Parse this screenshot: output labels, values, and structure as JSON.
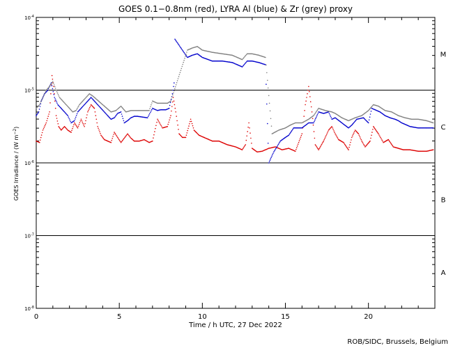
{
  "chart_data": {
    "type": "scatter",
    "title": "GOES 0.1−0.8nm (red), LYRA Al (blue) & Zr (grey) proxy",
    "xlabel": "Time / h UTC, 27 Dec 2022",
    "ylabel_main": "GOES Irradiance / (W m",
    "ylabel_sup": "−2",
    "ylabel_end": ")",
    "credit": "ROB/SIDC, Brussels, Belgium",
    "xlim": [
      0,
      24
    ],
    "ylim_log10": [
      -8,
      -4
    ],
    "y_scale": "log",
    "x_ticks": [
      {
        "v": 0,
        "label": "0"
      },
      {
        "v": 5,
        "label": "5"
      },
      {
        "v": 10,
        "label": "10"
      },
      {
        "v": 15,
        "label": "15"
      },
      {
        "v": 20,
        "label": "20"
      }
    ],
    "y_ticks": [
      {
        "e": -4,
        "label": "-4"
      },
      {
        "e": -5,
        "label": "-5"
      },
      {
        "e": -6,
        "label": "-6"
      },
      {
        "e": -7,
        "label": "-7"
      },
      {
        "e": -8,
        "label": "-8"
      }
    ],
    "class_labels": [
      {
        "label": "M",
        "log10": -4.5
      },
      {
        "label": "C",
        "log10": -5.5
      },
      {
        "label": "B",
        "log10": -6.5
      },
      {
        "label": "A",
        "log10": -7.5
      }
    ],
    "reference_lines_log10": [
      -5,
      -6,
      -7
    ],
    "series": [
      {
        "name": "GOES 0.1−0.8nm",
        "color": "#dd0000",
        "x": [
          0.0,
          0.2,
          0.4,
          0.6,
          0.8,
          0.95,
          1.05,
          1.2,
          1.35,
          1.5,
          1.7,
          1.9,
          2.1,
          2.3,
          2.5,
          2.7,
          2.9,
          3.1,
          3.3,
          3.5,
          3.7,
          3.9,
          4.1,
          4.3,
          4.5,
          4.7,
          4.9,
          5.1,
          5.3,
          5.5,
          5.7,
          5.9,
          6.2,
          6.5,
          6.8,
          7.0,
          7.3,
          7.6,
          7.9,
          8.1,
          8.25,
          8.4,
          8.6,
          8.8,
          9.0,
          9.3,
          9.5,
          9.8,
          10.2,
          10.6,
          11.0,
          11.5,
          12.0,
          12.4,
          12.6,
          12.8,
          13.0,
          13.3,
          13.6,
          14.0,
          14.4,
          14.8,
          15.2,
          15.6,
          16.0,
          16.2,
          16.4,
          16.6,
          16.8,
          17.0,
          17.3,
          17.6,
          17.8,
          18.0,
          18.2,
          18.5,
          18.8,
          19.0,
          19.2,
          19.4,
          19.6,
          19.8,
          20.1,
          20.3,
          20.6,
          20.9,
          21.2,
          21.5,
          21.8,
          22.1,
          22.5,
          23.0,
          23.5,
          23.9
        ],
        "y_log10": [
          -5.7,
          -5.72,
          -5.55,
          -5.45,
          -5.3,
          -4.8,
          -4.95,
          -5.35,
          -5.5,
          -5.55,
          -5.5,
          -5.55,
          -5.58,
          -5.45,
          -5.52,
          -5.4,
          -5.5,
          -5.3,
          -5.2,
          -5.25,
          -5.5,
          -5.62,
          -5.68,
          -5.7,
          -5.72,
          -5.58,
          -5.65,
          -5.72,
          -5.66,
          -5.6,
          -5.66,
          -5.7,
          -5.7,
          -5.68,
          -5.72,
          -5.7,
          -5.4,
          -5.52,
          -5.5,
          -5.35,
          -5.1,
          -5.3,
          -5.6,
          -5.65,
          -5.65,
          -5.4,
          -5.55,
          -5.62,
          -5.66,
          -5.7,
          -5.7,
          -5.75,
          -5.78,
          -5.82,
          -5.75,
          -5.45,
          -5.8,
          -5.85,
          -5.84,
          -5.8,
          -5.78,
          -5.82,
          -5.8,
          -5.84,
          -5.6,
          -5.2,
          -4.95,
          -5.3,
          -5.75,
          -5.82,
          -5.7,
          -5.55,
          -5.5,
          -5.6,
          -5.68,
          -5.72,
          -5.82,
          -5.65,
          -5.55,
          -5.6,
          -5.7,
          -5.78,
          -5.7,
          -5.5,
          -5.6,
          -5.72,
          -5.68,
          -5.78,
          -5.8,
          -5.82,
          -5.82,
          -5.84,
          -5.84,
          -5.82
        ]
      },
      {
        "name": "LYRA Al",
        "color": "#0000cc",
        "x": [
          0.0,
          0.15,
          0.3,
          0.5,
          0.7,
          0.9,
          1.1,
          1.3,
          1.5,
          1.7,
          1.9,
          2.1,
          2.3,
          2.5,
          2.7,
          2.9,
          3.1,
          3.3,
          3.5,
          4.5,
          4.7,
          4.9,
          5.1,
          5.3,
          5.5,
          5.7,
          5.9,
          6.1,
          6.4,
          6.7,
          7.0,
          7.3,
          7.5,
          7.8,
          8.0,
          8.2,
          8.3,
          8.35,
          9.1,
          9.4,
          9.7,
          10.0,
          10.6,
          11.2,
          11.8,
          12.4,
          12.7,
          13.0,
          13.4,
          13.8,
          14.0,
          14.3,
          14.7,
          15.0,
          15.2,
          15.5,
          15.8,
          16.0,
          16.4,
          16.7,
          17.0,
          17.3,
          17.6,
          17.8,
          18.0,
          18.4,
          18.8,
          19.0,
          19.3,
          19.7,
          20.0,
          20.2,
          20.4,
          20.7,
          21.0,
          21.3,
          21.6,
          21.8,
          22.0,
          22.5,
          23.0,
          23.5,
          23.9
        ],
        "y_log10": [
          -5.35,
          -5.3,
          -5.15,
          -5.05,
          -5.0,
          -4.9,
          -5.1,
          -5.2,
          -5.25,
          -5.3,
          -5.35,
          -5.45,
          -5.42,
          -5.3,
          -5.25,
          -5.2,
          -5.15,
          -5.1,
          -5.15,
          -5.4,
          -5.38,
          -5.32,
          -5.3,
          -5.45,
          -5.42,
          -5.38,
          -5.36,
          -5.36,
          -5.37,
          -5.38,
          -5.25,
          -5.28,
          -5.27,
          -5.27,
          -5.25,
          -5.05,
          -4.9,
          -4.3,
          -4.55,
          -4.52,
          -4.5,
          -4.55,
          -4.6,
          -4.6,
          -4.62,
          -4.68,
          -4.6,
          -4.6,
          -4.62,
          -4.65,
          -6.0,
          -5.85,
          -5.7,
          -5.65,
          -5.62,
          -5.52,
          -5.52,
          -5.52,
          -5.45,
          -5.45,
          -5.3,
          -5.32,
          -5.3,
          -5.4,
          -5.38,
          -5.45,
          -5.52,
          -5.48,
          -5.4,
          -5.38,
          -5.45,
          -5.25,
          -5.27,
          -5.3,
          -5.35,
          -5.38,
          -5.4,
          -5.42,
          -5.45,
          -5.5,
          -5.52,
          -5.52,
          -5.52
        ]
      },
      {
        "name": "LYRA Zr",
        "color": "#808080",
        "x": [
          0.0,
          0.2,
          0.4,
          0.6,
          0.8,
          1.0,
          1.2,
          1.4,
          1.6,
          1.8,
          2.0,
          2.2,
          2.4,
          2.6,
          2.8,
          3.0,
          3.2,
          3.4,
          4.5,
          4.8,
          5.1,
          5.4,
          5.7,
          6.0,
          6.4,
          6.8,
          7.0,
          7.3,
          7.6,
          7.9,
          8.1,
          9.1,
          9.4,
          9.7,
          10.0,
          10.6,
          11.2,
          11.8,
          12.4,
          12.7,
          13.0,
          13.4,
          13.8,
          14.2,
          14.6,
          15.0,
          15.3,
          15.6,
          16.0,
          16.4,
          16.7,
          17.0,
          17.4,
          17.8,
          18.0,
          18.4,
          18.8,
          19.2,
          19.6,
          20.0,
          20.3,
          20.6,
          21.0,
          21.4,
          21.8,
          22.2,
          22.6,
          23.0,
          23.5,
          23.9
        ],
        "y_log10": [
          -5.25,
          -5.2,
          -5.1,
          -5.0,
          -4.95,
          -4.88,
          -5.0,
          -5.1,
          -5.15,
          -5.2,
          -5.25,
          -5.3,
          -5.28,
          -5.2,
          -5.15,
          -5.1,
          -5.05,
          -5.08,
          -5.3,
          -5.28,
          -5.22,
          -5.3,
          -5.28,
          -5.28,
          -5.28,
          -5.28,
          -5.15,
          -5.18,
          -5.18,
          -5.18,
          -5.15,
          -4.45,
          -4.42,
          -4.4,
          -4.45,
          -4.48,
          -4.5,
          -4.52,
          -4.58,
          -4.5,
          -4.5,
          -4.52,
          -4.55,
          -5.6,
          -5.55,
          -5.52,
          -5.48,
          -5.45,
          -5.45,
          -5.4,
          -5.35,
          -5.25,
          -5.28,
          -5.3,
          -5.32,
          -5.38,
          -5.42,
          -5.38,
          -5.35,
          -5.28,
          -5.2,
          -5.22,
          -5.28,
          -5.3,
          -5.35,
          -5.38,
          -5.4,
          -5.4,
          -5.42,
          -5.45
        ]
      }
    ]
  }
}
